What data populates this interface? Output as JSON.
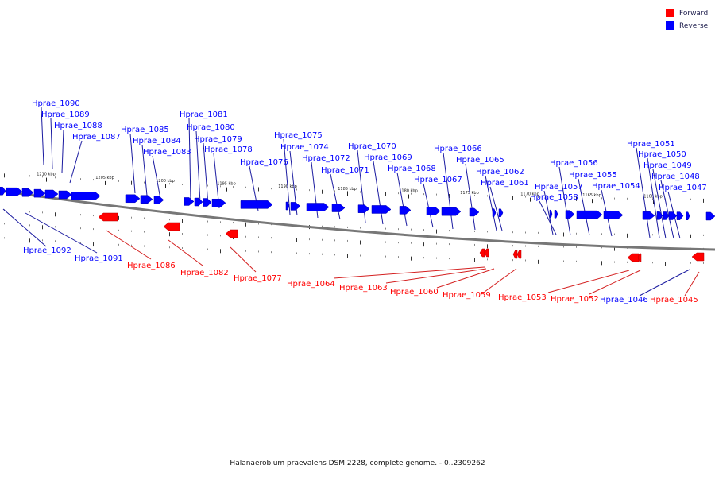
{
  "legend": [
    {
      "label": "Forward",
      "color": "#ff0000"
    },
    {
      "label": "Reverse",
      "color": "#0000ff"
    }
  ],
  "colors": {
    "forward": "#ff0000",
    "reverse": "#0000ff",
    "forward_line": "#d42020",
    "reverse_line": "#1a1aa0",
    "backbone": "#777777"
  },
  "caption": "Halanaerobium praevalens DSM 2228, complete genome. - 0..2309262",
  "scale_labels": [
    "1210 kbp",
    "1205 kbp",
    "1200 kbp",
    "1195 kbp",
    "1190 kbp",
    "1185 kbp",
    "1180 kbp",
    "1175 kbp",
    "1170 kbp",
    "1165 kbp",
    "1160 kbp"
  ],
  "reverse_genes_above": [
    "Hprae_1090",
    "Hprae_1089",
    "Hprae_1088",
    "Hprae_1087",
    "Hprae_1085",
    "Hprae_1084",
    "Hprae_1083",
    "Hprae_1081",
    "Hprae_1080",
    "Hprae_1079",
    "Hprae_1078",
    "Hprae_1076",
    "Hprae_1075",
    "Hprae_1074",
    "Hprae_1072",
    "Hprae_1071",
    "Hprae_1070",
    "Hprae_1069",
    "Hprae_1068",
    "Hprae_1067",
    "Hprae_1066",
    "Hprae_1065",
    "Hprae_1062",
    "Hprae_1061",
    "Hprae_1057",
    "Hprae_1058",
    "Hprae_1056",
    "Hprae_1055",
    "Hprae_1054",
    "Hprae_1051",
    "Hprae_1050",
    "Hprae_1049",
    "Hprae_1048",
    "Hprae_1047"
  ],
  "reverse_genes_below": [
    "Hprae_1092",
    "Hprae_1091",
    "Hprae_1046"
  ],
  "forward_genes": [
    "Hprae_1086",
    "Hprae_1082",
    "Hprae_1077",
    "Hprae_1064",
    "Hprae_1063",
    "Hprae_1060",
    "Hprae_1059",
    "Hprae_1053",
    "Hprae_1052",
    "Hprae_1045"
  ]
}
